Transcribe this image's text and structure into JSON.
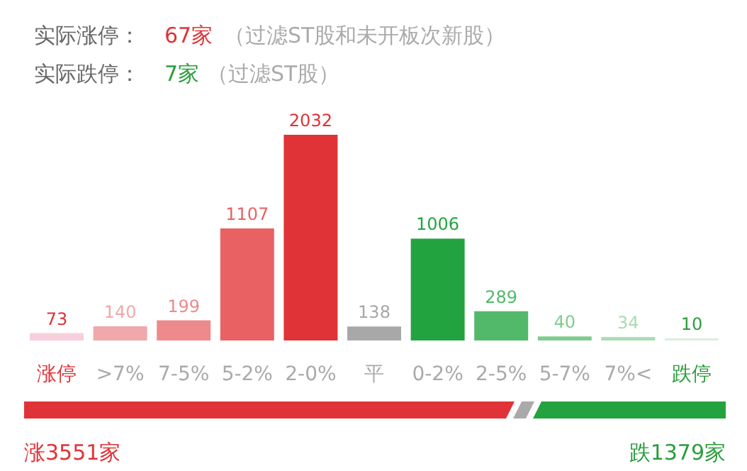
{
  "chart_data": {
    "type": "bar",
    "relative": false,
    "data_labels": true,
    "categories": [
      "涨停",
      ">7%",
      "7-5%",
      "5-2%",
      "2-0%",
      "平",
      "0-2%",
      "2-5%",
      "5-7%",
      "7%<",
      "跌停"
    ],
    "values": [
      73,
      140,
      199,
      1107,
      2032,
      138,
      1006,
      289,
      40,
      34,
      10
    ],
    "colors": [
      "#f7cfdc",
      "#f0a8aa",
      "#ee8a8c",
      "#ea6164",
      "#e03337",
      "#a8a8a8",
      "#23a33f",
      "#52b96a",
      "#7fcc8e",
      "#a9dcb3",
      "#dcece0"
    ],
    "annotations": [
      "实际涨停：",
      "67家",
      "（过滤ST股和未开板次新股）",
      "实际跌停：",
      "7家",
      "（过滤ST股）",
      "涨3551家",
      "跌1379家"
    ]
  }
}
